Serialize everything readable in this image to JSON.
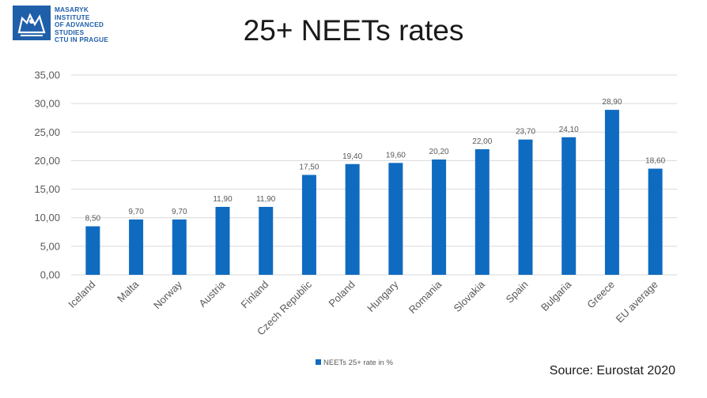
{
  "logo": {
    "lines": "MASARYK\nINSTITUTE\nOF ADVANCED\nSTUDIES\nCTU IN PRAGUE"
  },
  "title": "25+ NEETs rates",
  "source": "Source: Eurostat 2020",
  "colors": {
    "bar": "#0f6bc0",
    "grid": "#d9d9d9",
    "text": "#595959"
  },
  "chart_data": {
    "type": "bar",
    "categories": [
      "Iceland",
      "Malta",
      "Norway",
      "Austria",
      "Finland",
      "Czech Republic",
      "Poland",
      "Hungary",
      "Romania",
      "Slovakia",
      "Spain",
      "Bulgaria",
      "Greece",
      "EU average"
    ],
    "series": [
      {
        "name": "NEETs 25+ rate in %",
        "values": [
          8.5,
          9.7,
          9.7,
          11.9,
          11.9,
          17.5,
          19.4,
          19.6,
          20.2,
          22.0,
          23.7,
          24.1,
          28.9,
          18.6
        ],
        "labels": [
          "8,50",
          "9,70",
          "9,70",
          "11,90",
          "11,90",
          "17,50",
          "19,40",
          "19,60",
          "20,20",
          "22,00",
          "23,70",
          "24,10",
          "28,90",
          "18,60"
        ]
      }
    ],
    "ylim": [
      0,
      35
    ],
    "yticks": [
      "0,00",
      "5,00",
      "10,00",
      "15,00",
      "20,00",
      "25,00",
      "30,00",
      "35,00"
    ],
    "grid": true,
    "legend": "bottom"
  }
}
